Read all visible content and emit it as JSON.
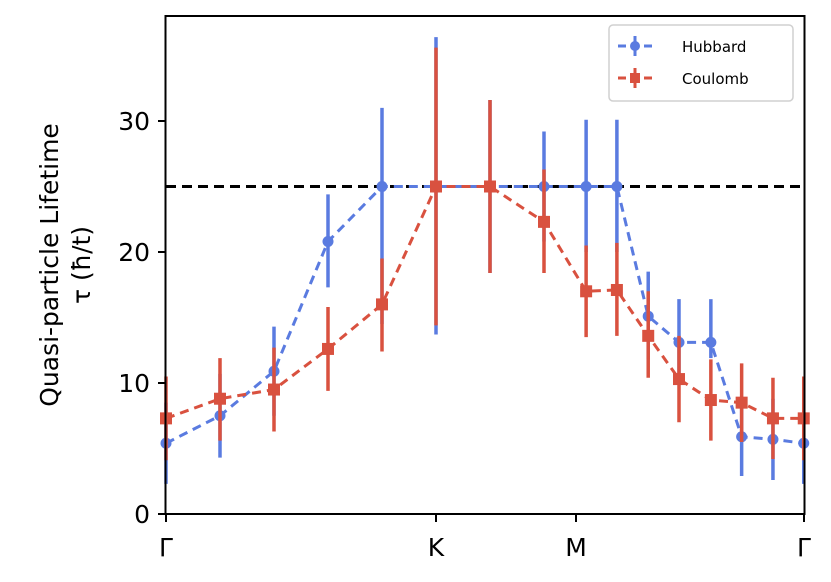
{
  "chart_data": {
    "type": "line",
    "title": "",
    "xlabel": "",
    "ylabel": "Quasi-particle Lifetime",
    "ylabel_line2": "τ (ħ/t)",
    "ylim": [
      0,
      38
    ],
    "yticks": [
      0,
      10,
      20,
      30
    ],
    "xtick_labels": [
      {
        "label": "Γ",
        "index": 0
      },
      {
        "label": "K",
        "index": 5
      },
      {
        "label": "M",
        "index": 7.8
      },
      {
        "label": "Γ",
        "index": 15
      }
    ],
    "grid": false,
    "legend_position": "upper right",
    "reference_line": {
      "y": 25,
      "style": "dashed",
      "color": "#000000"
    },
    "x_positions": [
      0,
      1,
      2,
      3,
      4,
      5,
      6,
      7,
      7.78,
      8.35,
      8.93,
      9.5,
      10.09,
      10.66,
      11.24,
      11.81
    ],
    "series": [
      {
        "name": "Hubbard",
        "color": "#5a7be0",
        "marker": "circle",
        "linestyle": "dashed",
        "values": [
          5.4,
          7.5,
          10.9,
          20.8,
          25.0,
          25.0,
          25.0,
          25.0,
          25.0,
          25.0,
          15.1,
          13.1,
          13.1,
          5.9,
          5.7,
          5.4
        ],
        "err_low": [
          2.3,
          4.3,
          7.5,
          17.3,
          14.5,
          13.7,
          18.4,
          20.8,
          20.0,
          20.0,
          11.8,
          10.0,
          11.9,
          2.9,
          2.6,
          2.3
        ],
        "err_high": [
          8.5,
          10.7,
          14.3,
          24.4,
          31.0,
          36.4,
          31.6,
          29.2,
          30.1,
          30.1,
          18.5,
          16.4,
          16.4,
          8.9,
          8.8,
          8.5
        ]
      },
      {
        "name": "Coulomb",
        "color": "#d9513f",
        "marker": "square",
        "linestyle": "dashed",
        "values": [
          7.3,
          8.8,
          9.5,
          12.6,
          16.0,
          25.0,
          25.0,
          22.3,
          17.0,
          17.1,
          13.6,
          10.3,
          8.7,
          8.5,
          7.3,
          7.3
        ],
        "err_low": [
          4.1,
          5.6,
          6.3,
          9.4,
          12.4,
          14.4,
          18.4,
          18.4,
          13.5,
          13.6,
          10.4,
          7.0,
          5.6,
          5.5,
          4.2,
          4.1
        ],
        "err_high": [
          10.5,
          11.9,
          12.7,
          15.8,
          19.5,
          35.6,
          31.6,
          26.3,
          20.5,
          20.7,
          17.0,
          13.6,
          11.8,
          11.5,
          10.4,
          10.5
        ]
      }
    ]
  },
  "legend": {
    "items": [
      {
        "label": "Hubbard",
        "color": "#5a7be0",
        "marker": "circle"
      },
      {
        "label": "Coulomb",
        "color": "#d9513f",
        "marker": "square"
      }
    ]
  }
}
